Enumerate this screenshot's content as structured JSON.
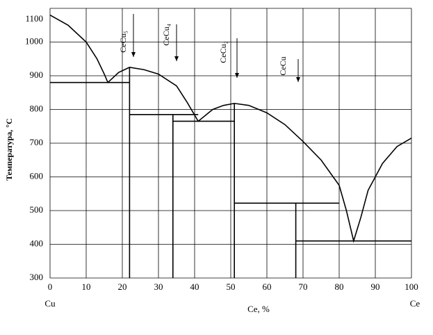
{
  "chart_data": {
    "type": "line",
    "y_label": "Температура, °С",
    "x_label": "Ce, %",
    "left_label": "Cu",
    "right_label": "Ce",
    "annotations": [
      "CeCu₅",
      "CeCu₄",
      "CeCu₂",
      "CeCu"
    ],
    "xlim": [
      0,
      100
    ],
    "xticks": [
      0,
      10,
      20,
      30,
      40,
      50,
      60,
      70,
      80,
      90,
      100
    ],
    "ylim": [
      300,
      1100
    ],
    "yticks": [
      300,
      400,
      500,
      600,
      700,
      800,
      900,
      1000,
      1100
    ],
    "grid": true,
    "color": "#000000",
    "series": [
      {
        "x": [
          0,
          5,
          10,
          13,
          15,
          16,
          19,
          22,
          26,
          30,
          35,
          38,
          41,
          45,
          48,
          51,
          55,
          60,
          65,
          70,
          75,
          80,
          82,
          84,
          86,
          88,
          92,
          96,
          100
        ],
        "values": [
          1080,
          1050,
          1000,
          950,
          905,
          880,
          910,
          925,
          918,
          905,
          870,
          820,
          765,
          800,
          812,
          818,
          812,
          790,
          755,
          705,
          650,
          575,
          500,
          410,
          480,
          560,
          640,
          690,
          715
        ]
      },
      {
        "x": [
          0,
          22
        ],
        "values": [
          880,
          880
        ]
      },
      {
        "x": [
          22,
          41
        ],
        "values": [
          785,
          785
        ]
      },
      {
        "x": [
          34,
          51
        ],
        "values": [
          765,
          765
        ]
      },
      {
        "x": [
          51,
          80
        ],
        "values": [
          522,
          522
        ]
      },
      {
        "x": [
          68,
          100
        ],
        "values": [
          410,
          410
        ]
      },
      {
        "x": [
          22,
          22
        ],
        "values": [
          925,
          300
        ]
      },
      {
        "x": [
          34,
          34
        ],
        "values": [
          785,
          300
        ]
      },
      {
        "x": [
          51,
          51
        ],
        "values": [
          818,
          300
        ]
      },
      {
        "x": [
          68,
          68
        ],
        "values": [
          522,
          300
        ]
      }
    ]
  }
}
